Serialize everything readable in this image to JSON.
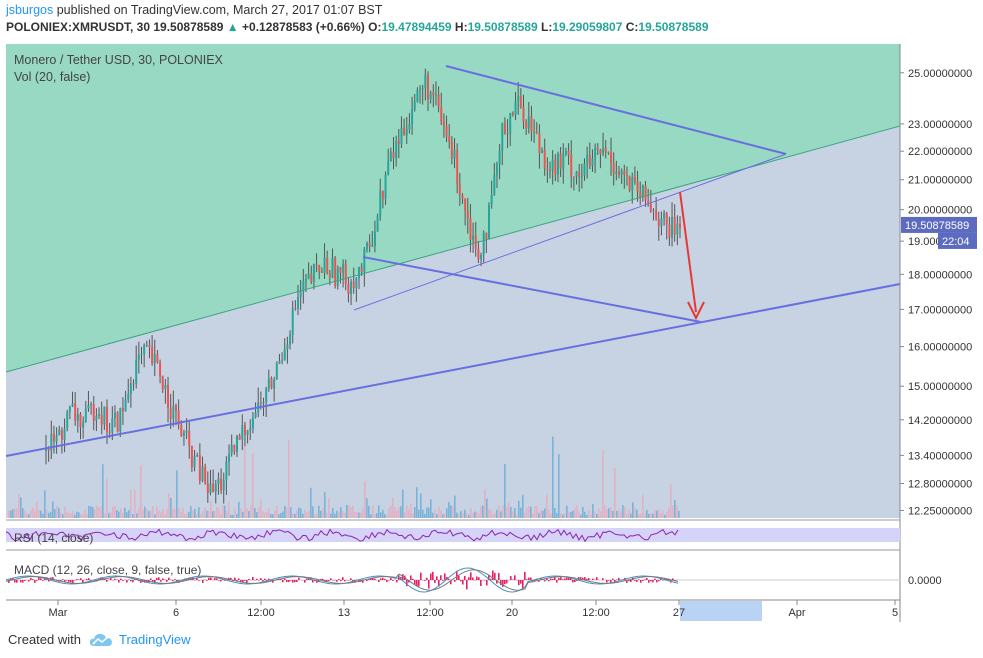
{
  "header": {
    "author": "jsburgos",
    "published_text": "published on TradingView.com, March 27, 2017 01:07 BST",
    "symbol": "POLONIEX:XMRUSDT, 30",
    "last": "19.50878589",
    "change_icon": "triangle-up-icon",
    "change": "+0.12878583 (+0.66%)",
    "o_label": "O:",
    "o": "19.47894459",
    "h_label": "H:",
    "h": "19.50878589",
    "l_label": "L:",
    "l": "19.29059807",
    "c_label": "C:",
    "c": "19.50878589"
  },
  "chart_data": {
    "type": "candlestick",
    "title": "Monero / Tether USD, 30, POLONIEX",
    "volume_label": "Vol (20, false)",
    "y_scale": "log",
    "ylim": [
      12.1,
      26.2
    ],
    "y_ticks": [
      "25.00000000",
      "23.00000000",
      "22.00000000",
      "21.00000000",
      "20.00000000",
      "19.00000000",
      "18.00000000",
      "17.00000000",
      "16.00000000",
      "15.00000000",
      "14.20000000",
      "13.40000000",
      "12.80000000",
      "12.25000000"
    ],
    "x_ticks": [
      "Mar",
      "6",
      "12:00",
      "13",
      "12:00",
      "20",
      "12:00",
      "27",
      "Apr",
      "5"
    ],
    "last_price_label": "19.50878589",
    "countdown_label": "22:04",
    "close_path": [
      13.5,
      13.8,
      14.4,
      14.1,
      14.6,
      14.0,
      14.3,
      15.5,
      15.8,
      15.3,
      14.4,
      13.7,
      13.1,
      12.6,
      12.9,
      13.6,
      14.2,
      14.6,
      15.2,
      16.3,
      17.4,
      17.9,
      18.3,
      18.0,
      17.8,
      18.2,
      19.6,
      21.5,
      22.6,
      23.8,
      24.6,
      23.3,
      22.0,
      20.2,
      18.6,
      19.8,
      22.6,
      23.9,
      23.2,
      22.1,
      21.4,
      21.7,
      21.2,
      21.6,
      22.0,
      21.5,
      20.8,
      20.4,
      20.0,
      19.3,
      19.5
    ],
    "drawings": {
      "upper_channel_line": "rising",
      "lower_channel_line": "rising",
      "triangle_upper": "falling",
      "triangle_lower": "falling",
      "projection_arrow": "down"
    },
    "rsi": {
      "label": "RSI (14, close)"
    },
    "macd": {
      "label": "MACD (12, 26, close, 9, false, true)",
      "zero_tick": "0.0000"
    },
    "colors": {
      "up": "#26a69a",
      "down": "#ef5350",
      "wick": "#555555",
      "green_zone": "#98d9c3",
      "blue_zone": "#c7d3e3",
      "trend_line": "#6a6fe0",
      "arrow": "#e53935",
      "rsi": "#8e24aa",
      "rsi_band": "#d5d3f7",
      "macd_line": "#4a90c2",
      "signal_line": "#7a7a7a",
      "macd_hist": "#e91e63",
      "price_label": "#5c6bc0",
      "volume": "#5fa8d3"
    }
  },
  "footer": {
    "created_with": "Created with",
    "logo_icon": "tradingview-cloud-icon",
    "brand": "TradingView"
  }
}
